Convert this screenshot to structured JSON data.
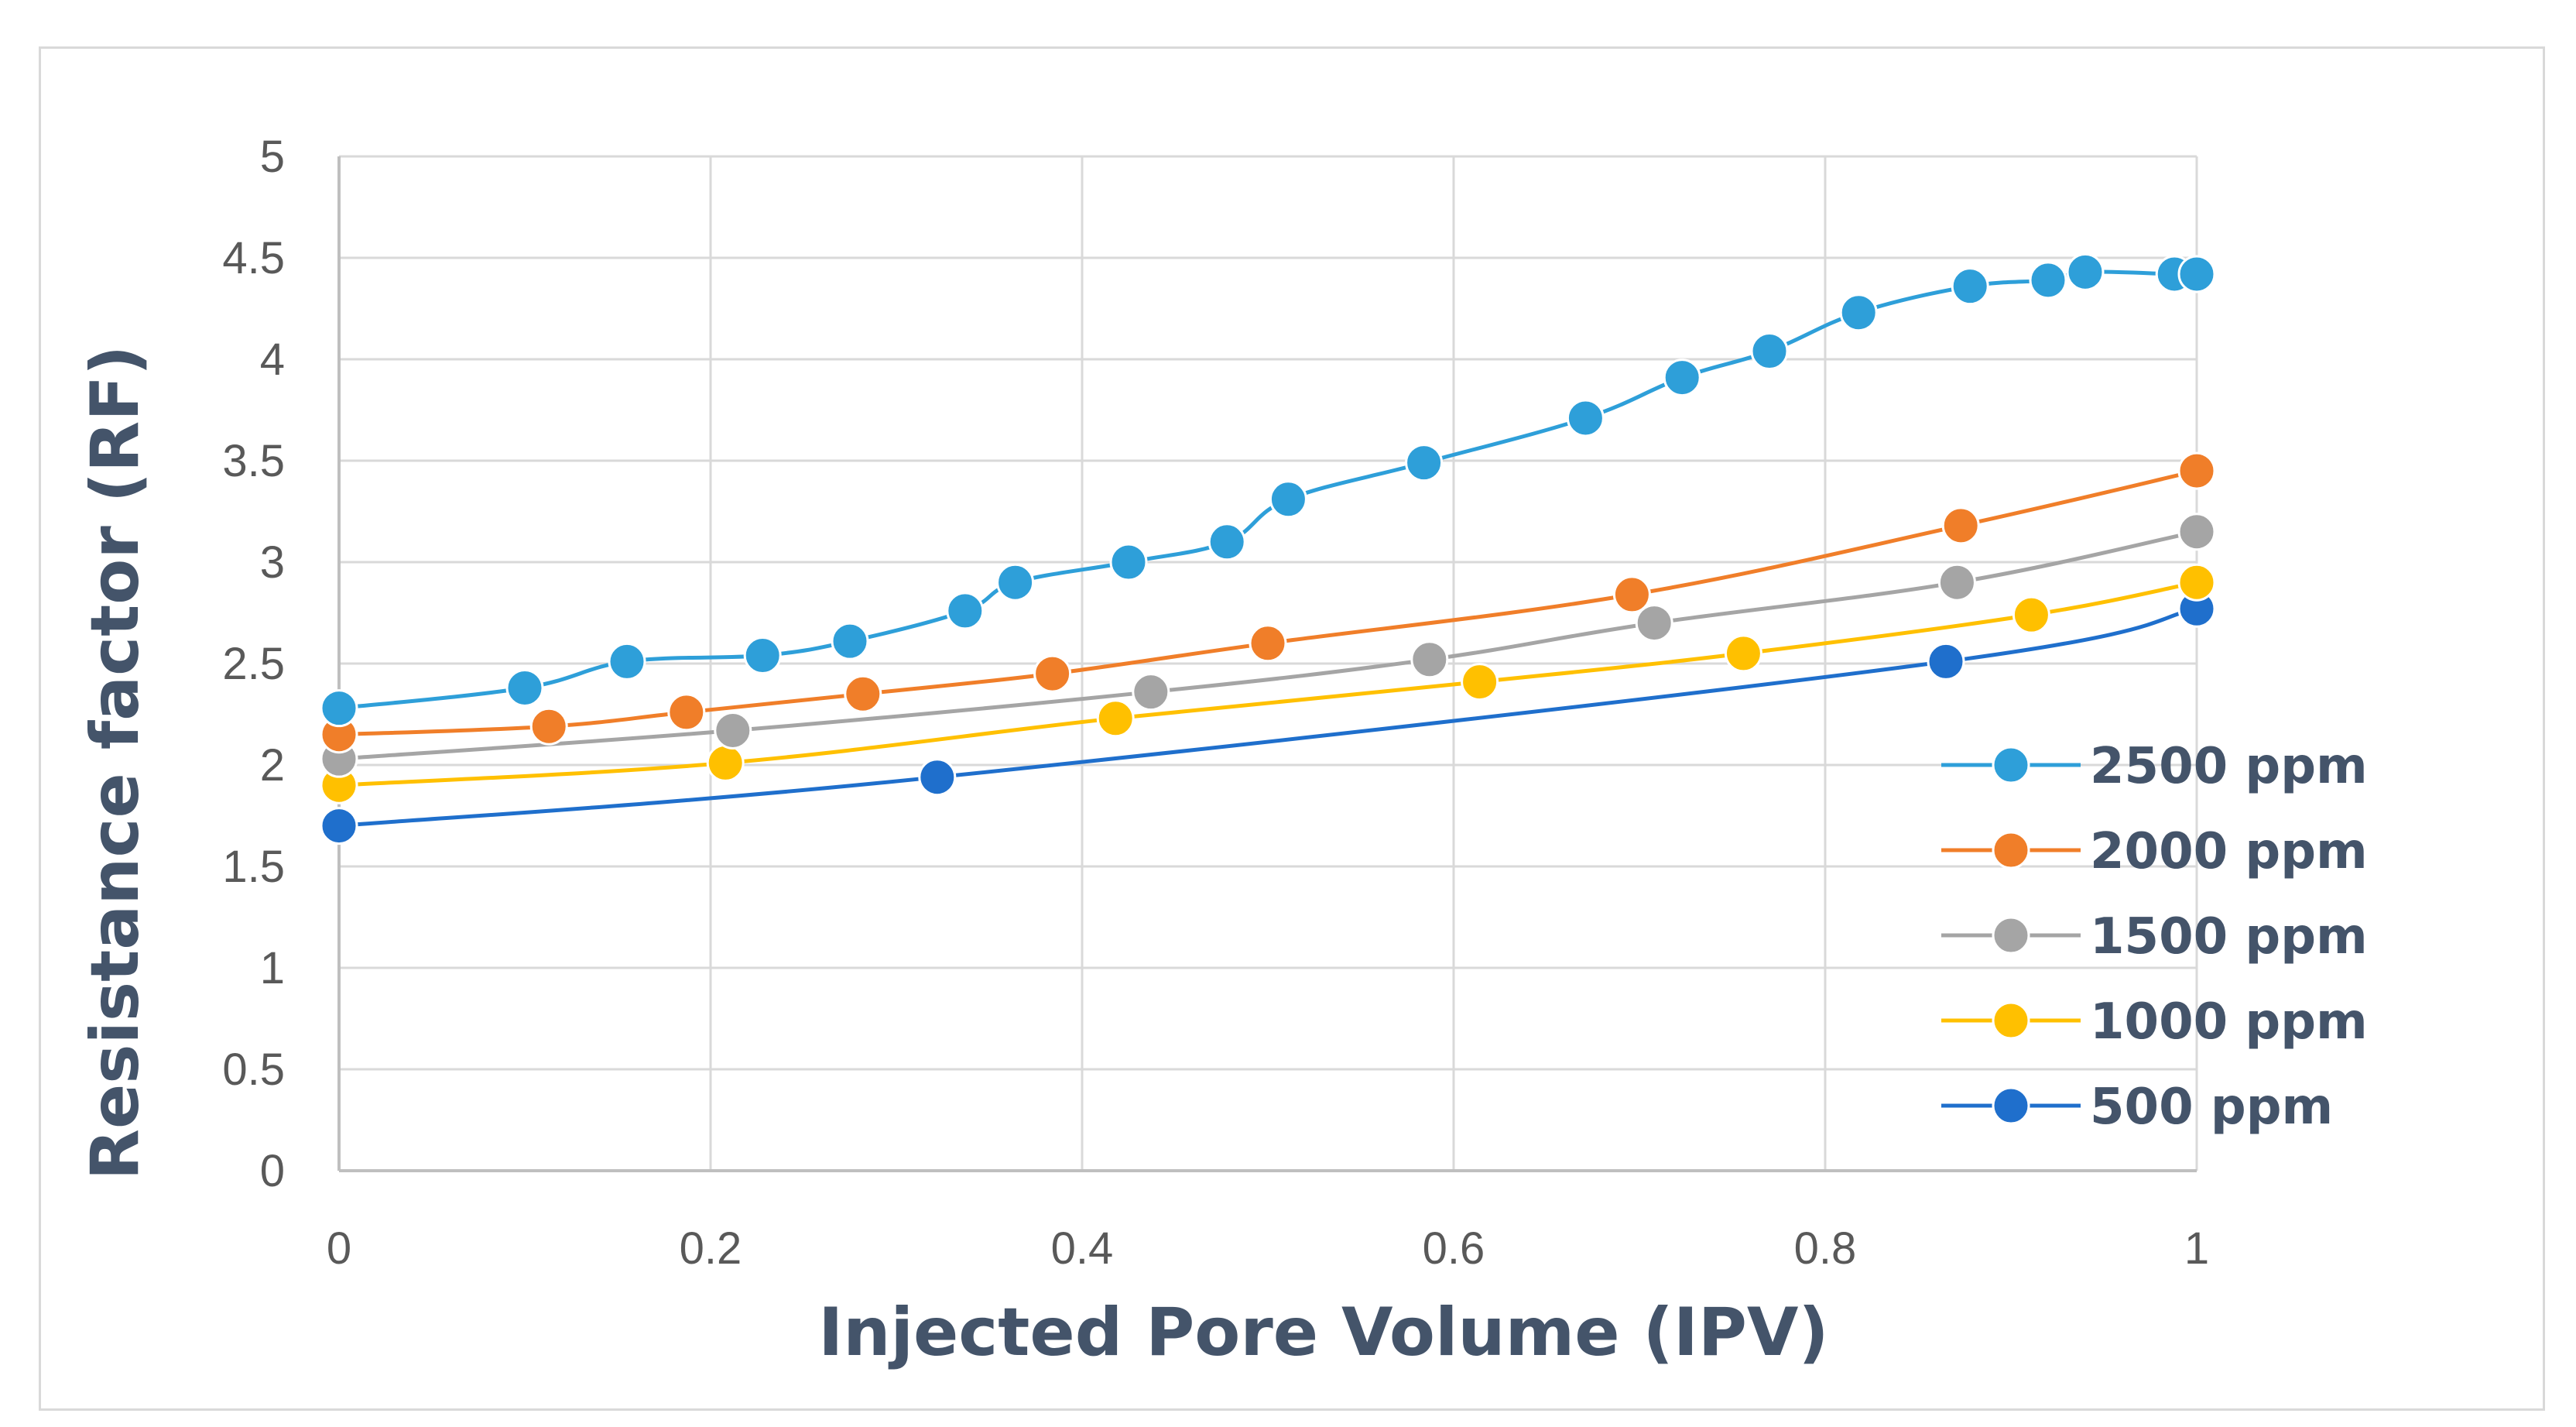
{
  "chart_data": {
    "type": "line",
    "title": "",
    "xlabel": "Injected Pore Volume (IPV)",
    "ylabel": "Resistance factor (RF)",
    "xlim": [
      0,
      1
    ],
    "ylim": [
      0,
      5
    ],
    "xticks": [
      0,
      0.2,
      0.4,
      0.6,
      0.8,
      1
    ],
    "yticks": [
      0,
      0.5,
      1,
      1.5,
      2,
      2.5,
      3,
      3.5,
      4,
      4.5,
      5
    ],
    "xtick_labels": [
      "0",
      "0.2",
      "0.4",
      "0.6",
      "0.8",
      "1"
    ],
    "ytick_labels": [
      "0",
      "0.5",
      "1",
      "1.5",
      "2",
      "2.5",
      "3",
      "3.5",
      "4",
      "4.5",
      "5"
    ],
    "grid": true,
    "legend_position": "right",
    "series": [
      {
        "name": "2500 ppm",
        "color": "#2e9fd9",
        "x": [
          0,
          0.1,
          0.155,
          0.228,
          0.275,
          0.337,
          0.364,
          0.425,
          0.478,
          0.511,
          0.584,
          0.671,
          0.723,
          0.77,
          0.818,
          0.878,
          0.92,
          0.94,
          0.988,
          1.0
        ],
        "y": [
          2.28,
          2.38,
          2.51,
          2.54,
          2.61,
          2.76,
          2.9,
          3.0,
          3.1,
          3.31,
          3.49,
          3.71,
          3.91,
          4.04,
          4.23,
          4.36,
          4.39,
          4.43,
          4.42,
          4.42
        ]
      },
      {
        "name": "2000 ppm",
        "color": "#f07e29",
        "x": [
          0,
          0.113,
          0.187,
          0.282,
          0.384,
          0.5,
          0.696,
          0.873,
          1.0
        ],
        "y": [
          2.15,
          2.19,
          2.26,
          2.35,
          2.45,
          2.6,
          2.84,
          3.18,
          3.45
        ]
      },
      {
        "name": "1500 ppm",
        "color": "#a5a5a5",
        "x": [
          0,
          0.212,
          0.437,
          0.587,
          0.708,
          0.871,
          1.0
        ],
        "y": [
          2.03,
          2.17,
          2.36,
          2.52,
          2.7,
          2.9,
          3.15
        ]
      },
      {
        "name": "1000 ppm",
        "color": "#ffc000",
        "x": [
          0,
          0.208,
          0.418,
          0.614,
          0.756,
          0.911,
          1.0
        ],
        "y": [
          1.9,
          2.01,
          2.23,
          2.41,
          2.55,
          2.74,
          2.9
        ]
      },
      {
        "name": "500 ppm",
        "color": "#1f6fcc",
        "x": [
          0,
          0.322,
          0.865,
          1.0
        ],
        "y": [
          1.7,
          1.94,
          2.51,
          2.77
        ]
      }
    ]
  }
}
